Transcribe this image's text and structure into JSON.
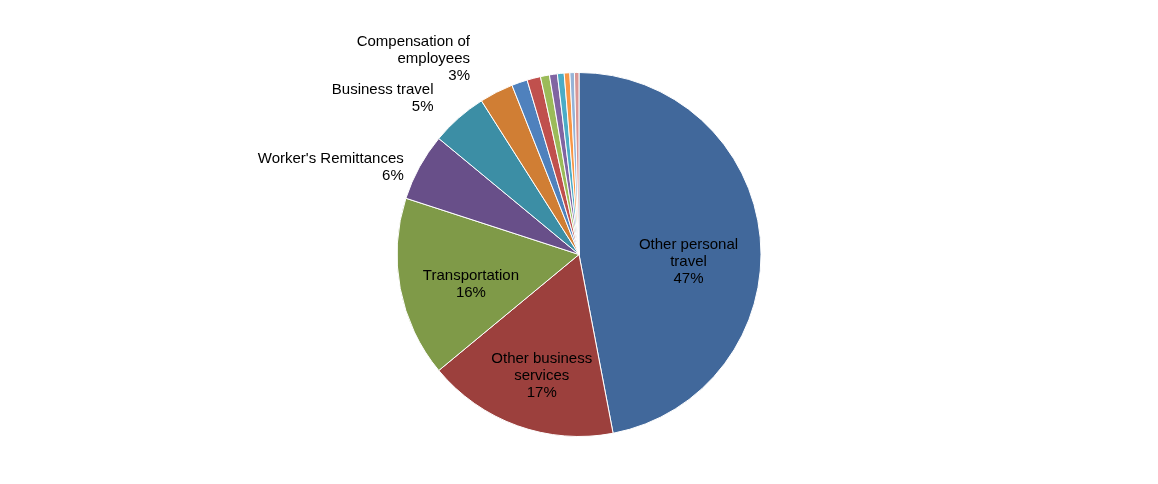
{
  "chart_data": {
    "type": "pie",
    "categories": [
      "Other personal travel",
      "Other business services",
      "Transportation",
      "Worker's Remittances",
      "Business travel",
      "Compensation of employees",
      null,
      null,
      null,
      null,
      null,
      null,
      null,
      null
    ],
    "values": [
      47,
      17,
      16,
      6,
      5,
      3,
      1.4,
      1.2,
      0.8,
      0.7,
      0.6,
      0.5,
      0.4,
      0.4
    ],
    "value_labels": [
      "47%",
      "17%",
      "16%",
      "6%",
      "5%",
      "3%",
      null,
      null,
      null,
      null,
      null,
      null,
      null,
      null
    ],
    "colors": [
      "#41689b",
      "#9c403d",
      "#7f9a48",
      "#684f89",
      "#3c8ea5",
      "#d07e34",
      "#4f81bd",
      "#c0504d",
      "#9bbb59",
      "#8064a2",
      "#4bacc6",
      "#f79646",
      "#95b3d7",
      "#d99694"
    ],
    "legend": false
  }
}
